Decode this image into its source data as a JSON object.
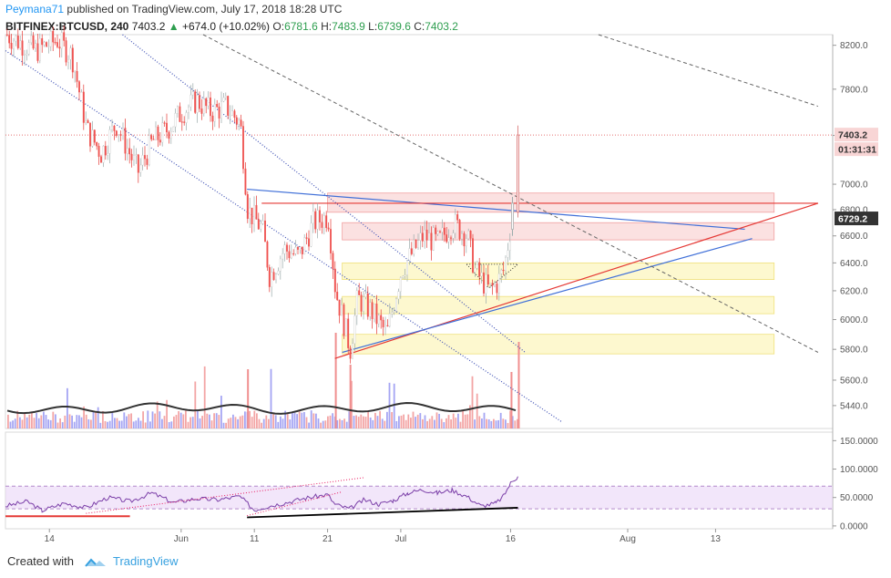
{
  "header": {
    "author": "Peymana71",
    "published_text": "published on TradingView.com, July 17, 2018 18:28 UTC",
    "symbol": "BITFINEX:BTCUSD, 240",
    "last": "7403.2",
    "change_arrow": "▲",
    "change": "+674.0 (+10.02%)",
    "o_label": "O:",
    "o": "6781.6",
    "h_label": "H:",
    "h": "7483.9",
    "l_label": "L:",
    "l": "6739.6",
    "c_label": "C:",
    "c": "7403.2"
  },
  "footer": {
    "created_with": "Created with",
    "brand": "TradingView"
  },
  "colors": {
    "up": "#26a69a",
    "down": "#ef5350",
    "wick_down": "#e53935",
    "blue_line": "#3f6fd8",
    "red_line": "#e53935",
    "rsi": "#7b3fa8",
    "pink_zone": "#f8c8c8",
    "yellow_zone": "#fbf3a8",
    "rsi_band": "#e9d5f7"
  },
  "chart_data": [
    {
      "type": "candlestick",
      "title": "BITFINEX:BTCUSD, 240",
      "y_scale": "log",
      "ylim": [
        5300,
        8300
      ],
      "y_ticks": [
        "8200.0",
        "7800.0",
        "7400.0",
        "7000.0",
        "6800.0",
        "6600.0",
        "6400.0",
        "6200.0",
        "6000.0",
        "5800.0",
        "5600.0",
        "5440.0"
      ],
      "x_ticks": [
        "14",
        "Jun",
        "11",
        "21",
        "Jul",
        "16",
        "Aug",
        "13"
      ],
      "last_price_label": "7403.2",
      "countdown_label": "01:31:31",
      "marker_price_label": "6729.2",
      "close_path": [
        [
          "2018-05-08",
          8300
        ],
        [
          "2018-05-12",
          8150
        ],
        [
          "2018-05-15",
          8250
        ],
        [
          "2018-05-17",
          8100
        ],
        [
          "2018-05-19",
          7450
        ],
        [
          "2018-05-21",
          7250
        ],
        [
          "2018-05-23",
          7500
        ],
        [
          "2018-05-26",
          7100
        ],
        [
          "2018-05-28",
          7350
        ],
        [
          "2018-05-30",
          7450
        ],
        [
          "2018-06-01",
          7600
        ],
        [
          "2018-06-03",
          7700
        ],
        [
          "2018-06-05",
          7600
        ],
        [
          "2018-06-07",
          7650
        ],
        [
          "2018-06-09",
          7500
        ],
        [
          "2018-06-10",
          6800
        ],
        [
          "2018-06-12",
          6650
        ],
        [
          "2018-06-13",
          6300
        ],
        [
          "2018-06-15",
          6500
        ],
        [
          "2018-06-17",
          6450
        ],
        [
          "2018-06-19",
          6700
        ],
        [
          "2018-06-21",
          6750
        ],
        [
          "2018-06-22",
          6200
        ],
        [
          "2018-06-24",
          5800
        ],
        [
          "2018-06-25",
          6150
        ],
        [
          "2018-06-27",
          6050
        ],
        [
          "2018-06-29",
          5900
        ],
        [
          "2018-07-01",
          6350
        ],
        [
          "2018-07-04",
          6600
        ],
        [
          "2018-07-06",
          6550
        ],
        [
          "2018-07-08",
          6700
        ],
        [
          "2018-07-10",
          6600
        ],
        [
          "2018-07-11",
          6350
        ],
        [
          "2018-07-13",
          6200
        ],
        [
          "2018-07-14",
          6250
        ],
        [
          "2018-07-15",
          6350
        ],
        [
          "2018-07-16",
          6700
        ],
        [
          "2018-07-17",
          7403.2
        ]
      ],
      "zones": [
        {
          "color": "pink",
          "from": "2018-06-21",
          "to": "2018-08-21",
          "low": 6780,
          "high": 6930
        },
        {
          "color": "pink",
          "from": "2018-06-23",
          "to": "2018-08-21",
          "low": 6570,
          "high": 6700
        },
        {
          "color": "yellow",
          "from": "2018-06-23",
          "to": "2018-08-21",
          "low": 6280,
          "high": 6400
        },
        {
          "color": "yellow",
          "from": "2018-06-23",
          "to": "2018-08-21",
          "low": 6040,
          "high": 6160
        },
        {
          "color": "yellow",
          "from": "2018-06-23",
          "to": "2018-08-21",
          "low": 5770,
          "high": 5900
        }
      ],
      "trendlines": [
        {
          "style": "blue",
          "from": [
            "2018-06-10",
            6960
          ],
          "to": [
            "2018-08-17",
            6650
          ]
        },
        {
          "style": "red",
          "from": [
            "2018-06-12",
            6850
          ],
          "to": [
            "2018-08-27",
            6850
          ]
        },
        {
          "style": "red",
          "from": [
            "2018-06-22",
            5740
          ],
          "to": [
            "2018-08-27",
            6850
          ]
        },
        {
          "style": "blue",
          "from": [
            "2018-06-23",
            5780
          ],
          "to": [
            "2018-08-18",
            6580
          ]
        },
        {
          "style": "blue-dotted",
          "from": [
            "2018-05-08",
            8150
          ],
          "to": [
            "2018-07-23",
            5340
          ]
        },
        {
          "style": "blue-dotted",
          "from": [
            "2018-05-24",
            8300
          ],
          "to": [
            "2018-07-18",
            5780
          ]
        },
        {
          "style": "gray-dashed",
          "from": [
            "2018-06-04",
            8300
          ],
          "to": [
            "2018-08-27",
            5780
          ]
        },
        {
          "style": "gray-dashed",
          "from": [
            "2018-07-28",
            8300
          ],
          "to": [
            "2018-08-27",
            7650
          ]
        }
      ]
    },
    {
      "type": "line",
      "title": "RSI",
      "ylim": [
        -5,
        165
      ],
      "y_ticks": [
        "150.0000",
        "100.0000",
        "50.0000",
        "0.0000"
      ],
      "band": [
        30,
        70
      ],
      "values": [
        [
          "2018-05-08",
          35
        ],
        [
          "2018-05-11",
          43
        ],
        [
          "2018-05-13",
          27
        ],
        [
          "2018-05-16",
          40
        ],
        [
          "2018-05-19",
          32
        ],
        [
          "2018-05-22",
          50
        ],
        [
          "2018-05-25",
          43
        ],
        [
          "2018-05-28",
          58
        ],
        [
          "2018-05-31",
          41
        ],
        [
          "2018-06-03",
          48
        ],
        [
          "2018-06-06",
          46
        ],
        [
          "2018-06-09",
          52
        ],
        [
          "2018-06-11",
          28
        ],
        [
          "2018-06-13",
          35
        ],
        [
          "2018-06-15",
          40
        ],
        [
          "2018-06-18",
          49
        ],
        [
          "2018-06-21",
          55
        ],
        [
          "2018-06-22",
          38
        ],
        [
          "2018-06-24",
          30
        ],
        [
          "2018-06-26",
          46
        ],
        [
          "2018-06-28",
          38
        ],
        [
          "2018-06-30",
          45
        ],
        [
          "2018-07-02",
          58
        ],
        [
          "2018-07-04",
          64
        ],
        [
          "2018-07-06",
          58
        ],
        [
          "2018-07-08",
          63
        ],
        [
          "2018-07-10",
          52
        ],
        [
          "2018-07-12",
          35
        ],
        [
          "2018-07-14",
          40
        ],
        [
          "2018-07-15",
          52
        ],
        [
          "2018-07-16",
          75
        ],
        [
          "2018-07-17",
          87
        ]
      ]
    }
  ]
}
